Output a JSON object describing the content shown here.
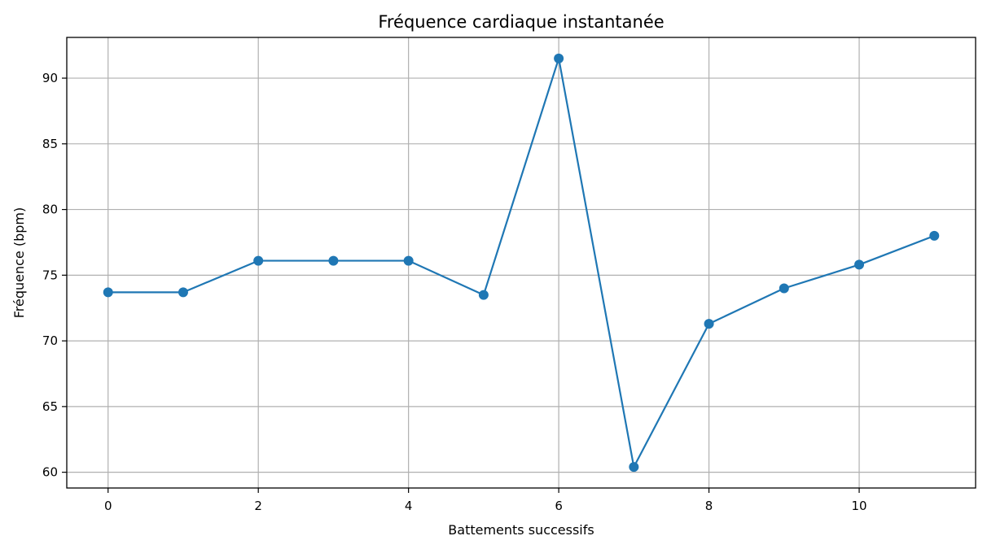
{
  "chart_data": {
    "type": "line",
    "title": "Fréquence cardiaque instantanée",
    "xlabel": "Battements successifs",
    "ylabel": "Fréquence (bpm)",
    "x": [
      0,
      1,
      2,
      3,
      4,
      5,
      6,
      7,
      8,
      9,
      10,
      11
    ],
    "series": [
      {
        "values": [
          73.7,
          73.7,
          76.1,
          76.1,
          76.1,
          73.5,
          91.5,
          60.4,
          71.3,
          74.0,
          75.8,
          78.0
        ],
        "color": "#1f77b4",
        "marker": "circle"
      }
    ],
    "xlim": [
      -0.55,
      11.55
    ],
    "ylim": [
      58.8,
      93.1
    ],
    "xticks": [
      0,
      2,
      4,
      6,
      8,
      10
    ],
    "yticks": [
      60,
      65,
      70,
      75,
      80,
      85,
      90
    ],
    "grid": true,
    "legend": "none"
  }
}
